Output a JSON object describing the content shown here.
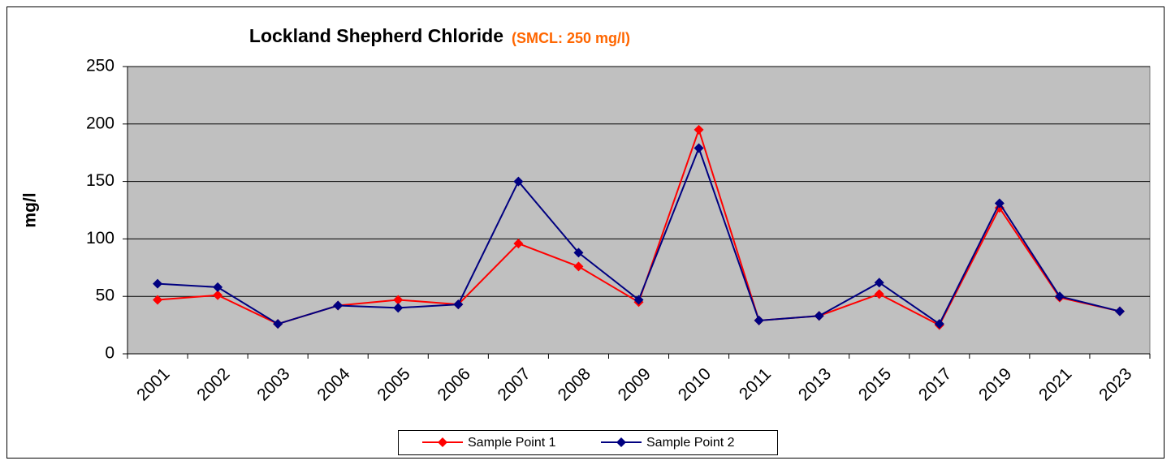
{
  "chart_data": {
    "type": "line",
    "title": "Lockland Shepherd Chloride",
    "subtitle": "(SMCL: 250 mg/l)",
    "y_label": "mg/l",
    "categories": [
      "2001",
      "2002",
      "2003",
      "2004",
      "2005",
      "2006",
      "2007",
      "2008",
      "2009",
      "2010",
      "2011",
      "2013",
      "2015",
      "2017",
      "2019",
      "2021",
      "2023"
    ],
    "series": [
      {
        "name": "Sample Point 1",
        "color": "#ff0000",
        "values": [
          47,
          51,
          26,
          42,
          47,
          43,
          96,
          76,
          45,
          195,
          29,
          33,
          52,
          25,
          127,
          49,
          37
        ]
      },
      {
        "name": "Sample Point 2",
        "color": "#000080",
        "values": [
          61,
          58,
          26,
          42,
          40,
          43,
          150,
          88,
          47,
          179,
          29,
          33,
          62,
          26,
          131,
          50,
          37
        ]
      }
    ],
    "ylim": [
      0,
      250
    ],
    "yticks": [
      0,
      50,
      100,
      150,
      200,
      250
    ],
    "grid": true,
    "legend": "bottom"
  }
}
